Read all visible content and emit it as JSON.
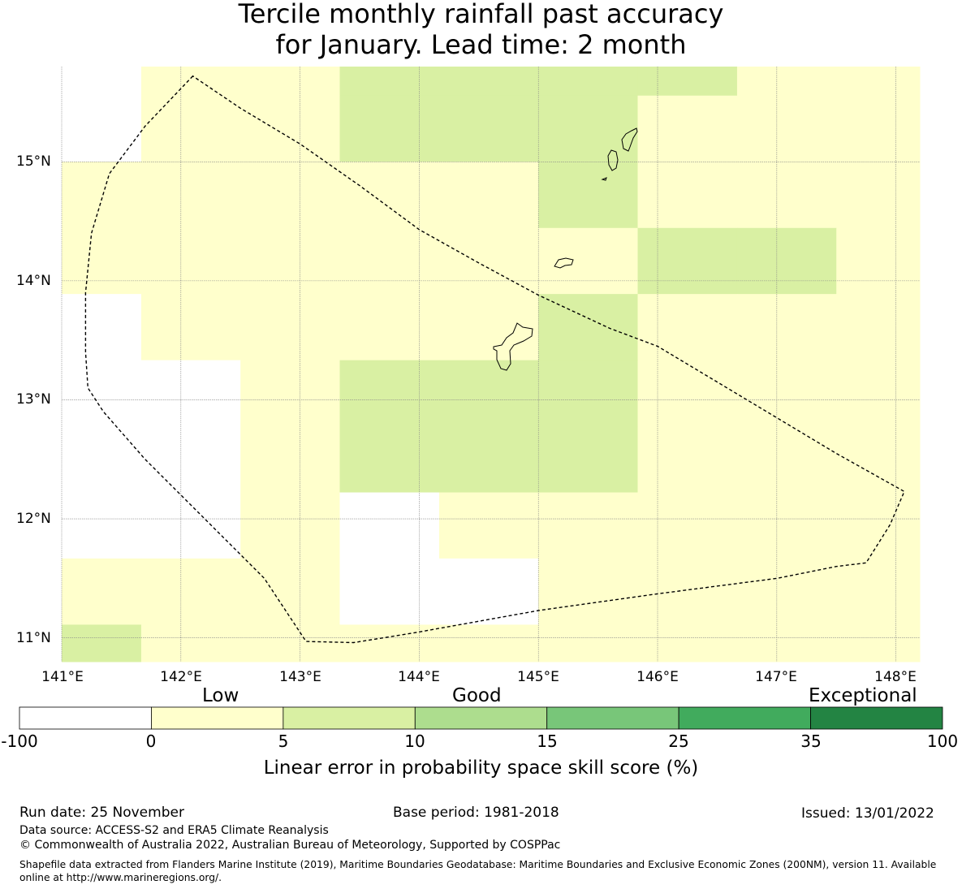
{
  "header": {
    "title_line1": "Tercile monthly rainfall past accuracy",
    "title_line2": "for January. Lead time: 2 month"
  },
  "map": {
    "region": "Guam / Northern Mariana Islands",
    "lon_range": [
      141.0,
      148.2
    ],
    "lat_range": [
      10.8,
      15.8
    ],
    "lon_ticks": [
      "141°E",
      "142°E",
      "143°E",
      "144°E",
      "145°E",
      "146°E",
      "147°E",
      "148°E"
    ],
    "lat_ticks": [
      "15°N",
      "14°N",
      "13°N",
      "12°N",
      "11°N"
    ],
    "grid_cells": {
      "cell_width_deg": 0.833,
      "cell_height_deg": 0.556,
      "lon_edges_deg": [
        141.0,
        141.667,
        142.5,
        143.333,
        144.167,
        145.0,
        145.833,
        146.667,
        147.5,
        148.2
      ],
      "lat_edges_deg": [
        15.8,
        15.556,
        15.0,
        14.444,
        13.889,
        13.333,
        12.778,
        12.222,
        11.667,
        11.111,
        10.8
      ],
      "rows": [
        [
          "none",
          "low",
          "low",
          "good",
          "good",
          "good",
          "good",
          "low",
          "low"
        ],
        [
          "none",
          "low",
          "low",
          "good",
          "good",
          "good",
          "low",
          "low",
          "low"
        ],
        [
          "low",
          "low",
          "low",
          "low",
          "low",
          "good",
          "low",
          "low",
          "low"
        ],
        [
          "low",
          "low",
          "low",
          "low",
          "low",
          "low",
          "good",
          "good",
          "low"
        ],
        [
          "none",
          "low",
          "low",
          "low",
          "low",
          "good",
          "low",
          "low",
          "low"
        ],
        [
          "none",
          "none",
          "low",
          "good",
          "good",
          "good",
          "low",
          "low",
          "low"
        ],
        [
          "none",
          "none",
          "low",
          "good",
          "good",
          "good",
          "low",
          "low",
          "low"
        ],
        [
          "none",
          "none",
          "low",
          "none",
          "low",
          "low",
          "low",
          "low",
          "low"
        ],
        [
          "low",
          "low",
          "low",
          "none",
          "none",
          "low",
          "low",
          "low",
          "low"
        ],
        [
          "good",
          "low",
          "low",
          "low",
          "low",
          "low",
          "low",
          "low",
          "low"
        ]
      ]
    },
    "eez_boundary_deg": [
      [
        142.1,
        15.72
      ],
      [
        141.7,
        15.3
      ],
      [
        141.4,
        14.9
      ],
      [
        141.25,
        14.4
      ],
      [
        141.2,
        13.9
      ],
      [
        141.2,
        13.4
      ],
      [
        141.22,
        13.1
      ],
      [
        141.35,
        12.9
      ],
      [
        141.7,
        12.5
      ],
      [
        142.2,
        12.0
      ],
      [
        142.7,
        11.5
      ],
      [
        143.05,
        10.97
      ],
      [
        143.45,
        10.96
      ],
      [
        144.0,
        11.05
      ],
      [
        145.0,
        11.23
      ],
      [
        146.0,
        11.37
      ],
      [
        147.0,
        11.5
      ],
      [
        147.5,
        11.6
      ],
      [
        147.75,
        11.63
      ],
      [
        147.95,
        11.95
      ],
      [
        148.07,
        12.23
      ],
      [
        147.5,
        12.55
      ],
      [
        147.0,
        12.85
      ],
      [
        146.5,
        13.15
      ],
      [
        146.0,
        13.45
      ],
      [
        145.6,
        13.6
      ],
      [
        145.0,
        13.88
      ],
      [
        144.5,
        14.15
      ],
      [
        144.0,
        14.43
      ],
      [
        143.5,
        14.8
      ],
      [
        143.0,
        15.15
      ],
      [
        142.5,
        15.45
      ],
      [
        142.1,
        15.72
      ]
    ]
  },
  "colorbar": {
    "category_labels": [
      "Low",
      "Good",
      "Exceptional"
    ],
    "ticks": [
      "-100",
      "0",
      "5",
      "10",
      "15",
      "25",
      "35",
      "100"
    ],
    "colors": [
      "#ffffff",
      "#ffffcc",
      "#d9f0a3",
      "#addd8e",
      "#78c679",
      "#41ab5d",
      "#238443"
    ],
    "title": "Linear error in probability space skill score (%)"
  },
  "colors": {
    "none": "#ffffff",
    "low": "#ffffcc",
    "good": "#d9f0a3"
  },
  "footer": {
    "run_date": "Run date: 25 November",
    "base_period": "Base period: 1981-2018",
    "issued": "Issued: 13/01/2022",
    "data_source": "Data source: ACCESS-S2 and ERA5 Climate Reanalysis",
    "copyright": "© Commonwealth of Australia 2022, Australian Bureau of Meteorology, Supported by COSPPac",
    "shapefile_note": "Shapefile data extracted from Flanders Marine Institute (2019), Maritime Boundaries Geodatabase: Maritime Boundaries and Exclusive Economic Zones (200NM), version 11. Available online at http://www.marineregions.org/."
  }
}
